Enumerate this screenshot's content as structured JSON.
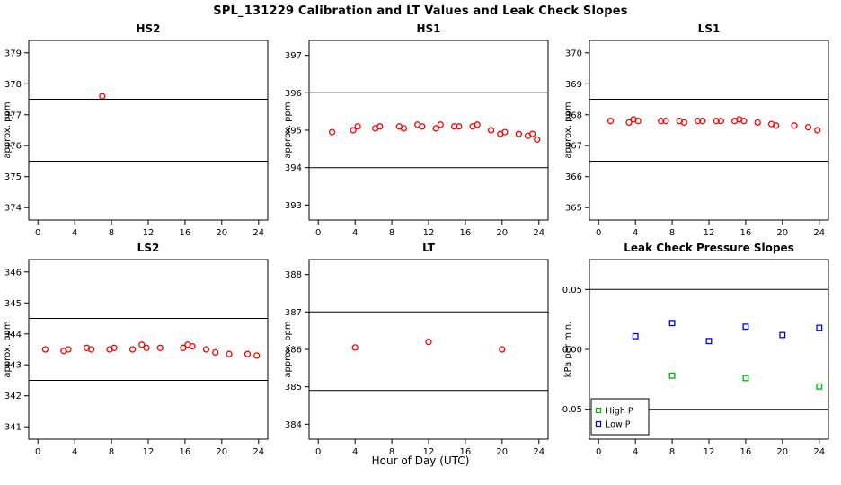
{
  "title": "SPL_131229  Calibration and LT Values and Leak Check Slopes",
  "xlabel": "Hour of Day (UTC)",
  "palette": {
    "cal_red": "#ff0000",
    "high_p_green": "#00b400",
    "low_p_blue": "#0000ee"
  },
  "chart_data": [
    {
      "type": "scatter",
      "title": "HS2",
      "ylabel": "approx. ppm",
      "xlim": [
        -1,
        25
      ],
      "ylim": [
        373.6,
        379.4
      ],
      "xticks": [
        0,
        4,
        8,
        12,
        16,
        20,
        24
      ],
      "yticks": [
        374,
        375,
        376,
        377,
        378,
        379
      ],
      "ytick_labels": [
        "374",
        "375",
        "376",
        "377",
        "378",
        "379"
      ],
      "hlines": [
        377.5,
        375.5
      ],
      "series": [
        {
          "name": "calibration",
          "marker": "circle",
          "color": "#ff0000",
          "points": [
            [
              7,
              377.6
            ]
          ]
        }
      ]
    },
    {
      "type": "scatter",
      "title": "HS1",
      "ylabel": "approx. ppm",
      "xlim": [
        -1,
        25
      ],
      "ylim": [
        392.6,
        397.4
      ],
      "xticks": [
        0,
        4,
        8,
        12,
        16,
        20,
        24
      ],
      "yticks": [
        393,
        394,
        395,
        396,
        397
      ],
      "ytick_labels": [
        "393",
        "394",
        "395",
        "396",
        "397"
      ],
      "hlines": [
        396.0,
        394.0
      ],
      "series": [
        {
          "name": "calibration",
          "marker": "circle",
          "color": "#ff0000",
          "points": [
            [
              1.5,
              394.95
            ],
            [
              3.8,
              395.0
            ],
            [
              4.3,
              395.1
            ],
            [
              6.2,
              395.05
            ],
            [
              6.7,
              395.1
            ],
            [
              8.8,
              395.1
            ],
            [
              9.3,
              395.05
            ],
            [
              10.8,
              395.15
            ],
            [
              11.3,
              395.1
            ],
            [
              12.8,
              395.05
            ],
            [
              13.3,
              395.15
            ],
            [
              14.8,
              395.1
            ],
            [
              15.3,
              395.1
            ],
            [
              16.8,
              395.1
            ],
            [
              17.3,
              395.15
            ],
            [
              18.8,
              395.0
            ],
            [
              19.8,
              394.9
            ],
            [
              20.3,
              394.95
            ],
            [
              21.8,
              394.9
            ],
            [
              22.8,
              394.85
            ],
            [
              23.3,
              394.9
            ],
            [
              23.8,
              394.75
            ]
          ]
        }
      ]
    },
    {
      "type": "scatter",
      "title": "LS1",
      "ylabel": "approx. ppm",
      "xlim": [
        -1,
        25
      ],
      "ylim": [
        364.6,
        370.4
      ],
      "xticks": [
        0,
        4,
        8,
        12,
        16,
        20,
        24
      ],
      "yticks": [
        365,
        366,
        367,
        368,
        369,
        370
      ],
      "ytick_labels": [
        "365",
        "366",
        "367",
        "368",
        "369",
        "370"
      ],
      "hlines": [
        368.5,
        366.5
      ],
      "series": [
        {
          "name": "calibration",
          "marker": "circle",
          "color": "#ff0000",
          "points": [
            [
              1.3,
              367.8
            ],
            [
              3.3,
              367.75
            ],
            [
              3.8,
              367.85
            ],
            [
              4.3,
              367.8
            ],
            [
              6.8,
              367.8
            ],
            [
              7.3,
              367.8
            ],
            [
              8.8,
              367.8
            ],
            [
              9.3,
              367.75
            ],
            [
              10.8,
              367.8
            ],
            [
              11.3,
              367.8
            ],
            [
              12.8,
              367.8
            ],
            [
              13.3,
              367.8
            ],
            [
              14.8,
              367.8
            ],
            [
              15.3,
              367.85
            ],
            [
              15.8,
              367.8
            ],
            [
              17.3,
              367.75
            ],
            [
              18.8,
              367.7
            ],
            [
              19.3,
              367.65
            ],
            [
              21.3,
              367.65
            ],
            [
              22.8,
              367.6
            ],
            [
              23.8,
              367.5
            ]
          ]
        }
      ]
    },
    {
      "type": "scatter",
      "title": "LS2",
      "ylabel": "approx. ppm",
      "xlim": [
        -1,
        25
      ],
      "ylim": [
        340.6,
        346.4
      ],
      "xticks": [
        0,
        4,
        8,
        12,
        16,
        20,
        24
      ],
      "yticks": [
        341,
        342,
        343,
        344,
        345,
        346
      ],
      "ytick_labels": [
        "341",
        "342",
        "343",
        "344",
        "345",
        "346"
      ],
      "hlines": [
        344.5,
        342.5
      ],
      "series": [
        {
          "name": "calibration",
          "marker": "circle",
          "color": "#ff0000",
          "points": [
            [
              0.8,
              343.5
            ],
            [
              2.8,
              343.45
            ],
            [
              3.3,
              343.5
            ],
            [
              5.3,
              343.55
            ],
            [
              5.8,
              343.5
            ],
            [
              7.8,
              343.5
            ],
            [
              8.3,
              343.55
            ],
            [
              10.3,
              343.5
            ],
            [
              11.3,
              343.65
            ],
            [
              11.8,
              343.55
            ],
            [
              13.3,
              343.55
            ],
            [
              15.8,
              343.55
            ],
            [
              16.3,
              343.65
            ],
            [
              16.8,
              343.6
            ],
            [
              18.3,
              343.5
            ],
            [
              19.3,
              343.4
            ],
            [
              20.8,
              343.35
            ],
            [
              22.8,
              343.35
            ],
            [
              23.8,
              343.3
            ]
          ]
        }
      ]
    },
    {
      "type": "scatter",
      "title": "LT",
      "ylabel": "approx. ppm",
      "xlim": [
        -1,
        25
      ],
      "ylim": [
        383.6,
        388.4
      ],
      "xticks": [
        0,
        4,
        8,
        12,
        16,
        20,
        24
      ],
      "yticks": [
        384,
        385,
        386,
        387,
        388
      ],
      "ytick_labels": [
        "384",
        "385",
        "386",
        "387",
        "388"
      ],
      "hlines": [
        387.0,
        384.9
      ],
      "series": [
        {
          "name": "lt-values",
          "marker": "circle",
          "color": "#ff0000",
          "points": [
            [
              4,
              386.05
            ],
            [
              12,
              386.2
            ],
            [
              20,
              386.0
            ]
          ]
        }
      ]
    },
    {
      "type": "scatter",
      "title": "Leak Check Pressure Slopes",
      "ylabel": "kPa per min.",
      "xlim": [
        -1,
        25
      ],
      "ylim": [
        -0.075,
        0.075
      ],
      "xticks": [
        0,
        4,
        8,
        12,
        16,
        20,
        24
      ],
      "yticks": [
        -0.05,
        0,
        0.05
      ],
      "ytick_labels": [
        "-0.05",
        "0.00",
        "0.05"
      ],
      "hlines": [
        0.05,
        -0.05
      ],
      "series": [
        {
          "name": "High P",
          "marker": "square",
          "color": "#00b400",
          "points": [
            [
              8,
              -0.022
            ],
            [
              16,
              -0.024
            ],
            [
              24,
              -0.031
            ]
          ]
        },
        {
          "name": "Low P",
          "marker": "square",
          "color": "#0000ee",
          "points": [
            [
              4,
              0.011
            ],
            [
              8,
              0.022
            ],
            [
              12,
              0.007
            ],
            [
              16,
              0.019
            ],
            [
              20,
              0.012
            ],
            [
              24,
              0.018
            ]
          ]
        }
      ],
      "legend": {
        "position": "bottom-left",
        "entries": [
          {
            "label": "High P",
            "color": "#00b400",
            "marker": "square"
          },
          {
            "label": "Low P",
            "color": "#0000ee",
            "marker": "square"
          }
        ]
      }
    }
  ]
}
